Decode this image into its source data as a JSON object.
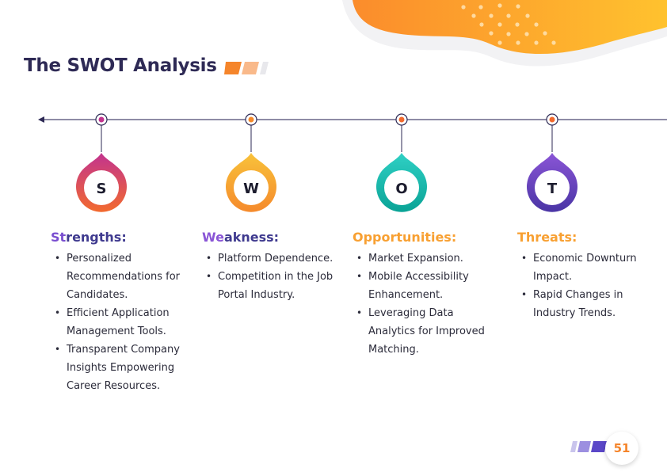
{
  "title": "The SWOT Analysis",
  "page_number": "51",
  "colors": {
    "title": "#2e2a55",
    "orange": "#f8a032",
    "strengths_gradient": [
      "#c2338f",
      "#f26a2e"
    ],
    "weakness_gradient": [
      "#f8c23a",
      "#f58a2c"
    ],
    "opportunities_gradient": [
      "#2fd0c4",
      "#0aa396"
    ],
    "threats_gradient": [
      "#8a55d6",
      "#4a35a5"
    ]
  },
  "items": [
    {
      "letter": "S",
      "heading_lead": "St",
      "heading_rest": "rengths:",
      "bullets": [
        "Personalized Recommendations for Candidates.",
        "Efficient Application Management Tools.",
        "Transparent Company Insights Empowering Career Resources."
      ]
    },
    {
      "letter": "W",
      "heading_lead": "We",
      "heading_rest": "akness:",
      "bullets": [
        "Platform Dependence.",
        "Competition in the Job Portal Industry."
      ]
    },
    {
      "letter": "O",
      "heading_lead": "Opportunities:",
      "heading_rest": "",
      "bullets": [
        "Market Expansion.",
        "Mobile Accessibility Enhancement.",
        "Leveraging Data Analytics for Improved Matching."
      ]
    },
    {
      "letter": "T",
      "heading_lead": "Threats:",
      "heading_rest": "",
      "bullets": [
        "Economic Downturn Impact.",
        "Rapid Changes in Industry Trends."
      ]
    }
  ]
}
